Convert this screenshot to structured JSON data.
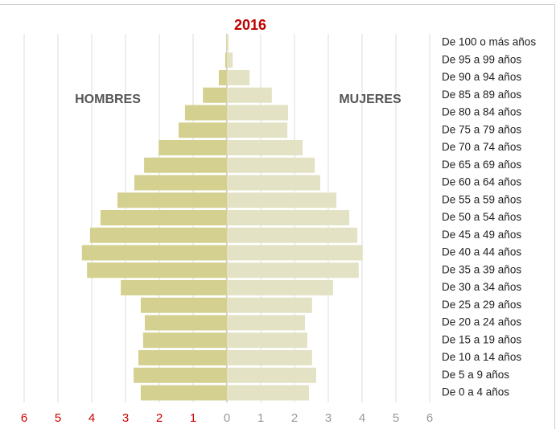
{
  "chart_data": {
    "type": "pyramid",
    "title": "2016",
    "categories": [
      "De 100 o más años",
      "De 95 a 99 años",
      "De 90 a 94 años",
      "De 85 a 89 años",
      "De 80 a 84 años",
      "De 75 a 79 años",
      "De 70 a 74 años",
      "De 65 a 69 años",
      "De 60 a 64 años",
      "De 55 a 59 años",
      "De 50 a 54 años",
      "De 45 a 49 años",
      "De 40 a 44 años",
      "De 35 a 39 años",
      "De 30 a 34 años",
      "De 25 a 29 años",
      "De 20 a 24 años",
      "De 15 a 19 años",
      "De 10 a 14 años",
      "De 5 a 9 años",
      "De 0 a 4 años"
    ],
    "series": [
      {
        "name": "HOMBRES",
        "color": "#d4d08f",
        "side": "left",
        "values": [
          0.02,
          0.05,
          0.24,
          0.71,
          1.24,
          1.43,
          2.02,
          2.45,
          2.74,
          3.24,
          3.74,
          4.05,
          4.29,
          4.14,
          3.14,
          2.55,
          2.43,
          2.48,
          2.62,
          2.76,
          2.55
        ]
      },
      {
        "name": "MUJERES",
        "color": "#e3e2c5",
        "side": "right",
        "values": [
          0.05,
          0.17,
          0.67,
          1.33,
          1.81,
          1.79,
          2.24,
          2.6,
          2.76,
          3.24,
          3.62,
          3.86,
          4.02,
          3.9,
          3.14,
          2.52,
          2.31,
          2.38,
          2.52,
          2.64,
          2.43
        ]
      }
    ],
    "xlim": [
      0,
      6
    ],
    "xticks": [
      0,
      1,
      2,
      3,
      4,
      5,
      6
    ],
    "grid": true
  }
}
